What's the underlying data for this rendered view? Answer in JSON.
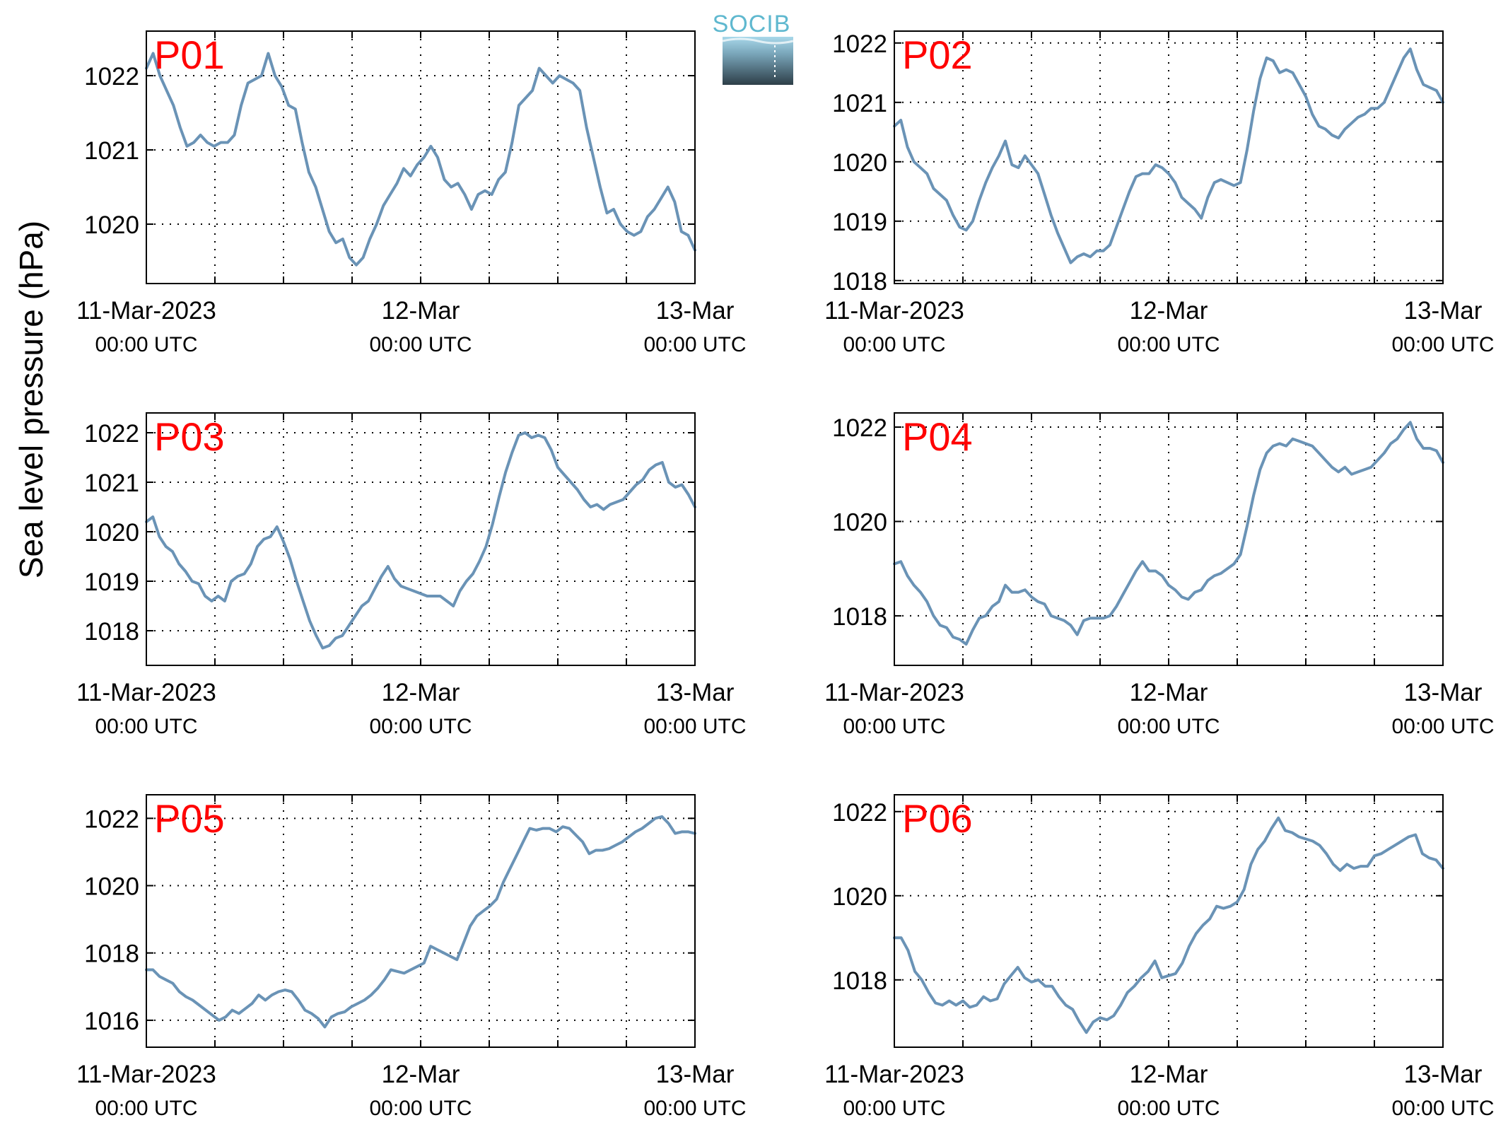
{
  "figure": {
    "ylabel": "Sea level pressure (hPa)",
    "logo_text": "SOCIB",
    "colors": {
      "line": "#6a93b6",
      "panel_label": "#ff0000",
      "axis": "#000000",
      "grid": "#000000"
    }
  },
  "chart_data": [
    {
      "type": "line",
      "panel_label": "P01",
      "x_range": [
        "2023-03-11T00:00Z",
        "2023-03-13T00:00Z"
      ],
      "ylim": [
        1019.2,
        1022.6
      ],
      "y_ticks": [
        1020,
        1021,
        1022
      ],
      "grid": true,
      "x_tick_labels": [
        {
          "date": "11-Mar-2023",
          "time": "00:00 UTC"
        },
        {
          "date": "12-Mar",
          "time": "00:00 UTC"
        },
        {
          "date": "13-Mar",
          "time": "00:00 UTC"
        }
      ],
      "series": [
        {
          "values": [
            1022.1,
            1022.3,
            1022.0,
            1021.8,
            1021.6,
            1021.3,
            1021.05,
            1021.1,
            1021.2,
            1021.1,
            1021.05,
            1021.1,
            1021.1,
            1021.2,
            1021.6,
            1021.9,
            1021.95,
            1022.0,
            1022.3,
            1022.0,
            1021.85,
            1021.6,
            1021.55,
            1021.1,
            1020.7,
            1020.5,
            1020.2,
            1019.9,
            1019.75,
            1019.8,
            1019.55,
            1019.45,
            1019.55,
            1019.8,
            1020.0,
            1020.25,
            1020.4,
            1020.55,
            1020.75,
            1020.65,
            1020.8,
            1020.9,
            1021.05,
            1020.9,
            1020.6,
            1020.5,
            1020.55,
            1020.4,
            1020.2,
            1020.4,
            1020.45,
            1020.4,
            1020.6,
            1020.7,
            1021.1,
            1021.6,
            1021.7,
            1021.8,
            1022.1,
            1022.0,
            1021.9,
            1022.0,
            1021.95,
            1021.9,
            1021.8,
            1021.3,
            1020.9,
            1020.5,
            1020.15,
            1020.2,
            1020.0,
            1019.9,
            1019.85,
            1019.9,
            1020.1,
            1020.2,
            1020.35,
            1020.5,
            1020.3,
            1019.9,
            1019.85,
            1019.65
          ]
        }
      ]
    },
    {
      "type": "line",
      "panel_label": "P02",
      "x_range": [
        "2023-03-11T00:00Z",
        "2023-03-13T00:00Z"
      ],
      "ylim": [
        1017.95,
        1022.2
      ],
      "y_ticks": [
        1018,
        1019,
        1020,
        1021,
        1022
      ],
      "grid": true,
      "x_tick_labels": [
        {
          "date": "11-Mar-2023",
          "time": "00:00 UTC"
        },
        {
          "date": "12-Mar",
          "time": "00:00 UTC"
        },
        {
          "date": "13-Mar",
          "time": "00:00 UTC"
        }
      ],
      "series": [
        {
          "values": [
            1020.6,
            1020.7,
            1020.25,
            1020.0,
            1019.9,
            1019.8,
            1019.55,
            1019.45,
            1019.35,
            1019.1,
            1018.9,
            1018.85,
            1019.0,
            1019.35,
            1019.65,
            1019.9,
            1020.1,
            1020.35,
            1019.95,
            1019.9,
            1020.1,
            1019.95,
            1019.8,
            1019.45,
            1019.1,
            1018.8,
            1018.55,
            1018.3,
            1018.4,
            1018.45,
            1018.4,
            1018.5,
            1018.5,
            1018.6,
            1018.9,
            1019.2,
            1019.5,
            1019.75,
            1019.8,
            1019.8,
            1019.95,
            1019.9,
            1019.8,
            1019.65,
            1019.4,
            1019.3,
            1019.2,
            1019.05,
            1019.4,
            1019.65,
            1019.7,
            1019.65,
            1019.6,
            1019.65,
            1020.2,
            1020.85,
            1021.4,
            1021.75,
            1021.7,
            1021.5,
            1021.55,
            1021.5,
            1021.3,
            1021.1,
            1020.8,
            1020.6,
            1020.55,
            1020.45,
            1020.4,
            1020.55,
            1020.65,
            1020.75,
            1020.8,
            1020.9,
            1020.9,
            1021.0,
            1021.25,
            1021.5,
            1021.75,
            1021.9,
            1021.55,
            1021.3,
            1021.25,
            1021.2,
            1021.0
          ]
        }
      ]
    },
    {
      "type": "line",
      "panel_label": "P03",
      "x_range": [
        "2023-03-11T00:00Z",
        "2023-03-13T00:00Z"
      ],
      "ylim": [
        1017.3,
        1022.4
      ],
      "y_ticks": [
        1018,
        1019,
        1020,
        1021,
        1022
      ],
      "grid": true,
      "x_tick_labels": [
        {
          "date": "11-Mar-2023",
          "time": "00:00 UTC"
        },
        {
          "date": "12-Mar",
          "time": "00:00 UTC"
        },
        {
          "date": "13-Mar",
          "time": "00:00 UTC"
        }
      ],
      "series": [
        {
          "values": [
            1020.2,
            1020.3,
            1019.9,
            1019.7,
            1019.6,
            1019.35,
            1019.2,
            1019.0,
            1018.95,
            1018.7,
            1018.6,
            1018.7,
            1018.6,
            1019.0,
            1019.1,
            1019.15,
            1019.35,
            1019.7,
            1019.85,
            1019.9,
            1020.1,
            1019.8,
            1019.45,
            1019.0,
            1018.6,
            1018.2,
            1017.9,
            1017.65,
            1017.7,
            1017.85,
            1017.9,
            1018.1,
            1018.3,
            1018.5,
            1018.6,
            1018.85,
            1019.1,
            1019.3,
            1019.05,
            1018.9,
            1018.85,
            1018.8,
            1018.75,
            1018.7,
            1018.7,
            1018.7,
            1018.6,
            1018.5,
            1018.8,
            1019.0,
            1019.15,
            1019.4,
            1019.7,
            1020.15,
            1020.7,
            1021.2,
            1021.6,
            1021.95,
            1022.0,
            1021.9,
            1021.95,
            1021.9,
            1021.65,
            1021.3,
            1021.15,
            1021.0,
            1020.85,
            1020.65,
            1020.5,
            1020.55,
            1020.45,
            1020.55,
            1020.6,
            1020.65,
            1020.8,
            1020.95,
            1021.05,
            1021.25,
            1021.35,
            1021.4,
            1021.0,
            1020.9,
            1020.95,
            1020.75,
            1020.5
          ]
        }
      ]
    },
    {
      "type": "line",
      "panel_label": "P04",
      "x_range": [
        "2023-03-11T00:00Z",
        "2023-03-13T00:00Z"
      ],
      "ylim": [
        1016.95,
        1022.3
      ],
      "y_ticks": [
        1018,
        1020,
        1022
      ],
      "grid": true,
      "x_tick_labels": [
        {
          "date": "11-Mar-2023",
          "time": "00:00 UTC"
        },
        {
          "date": "12-Mar",
          "time": "00:00 UTC"
        },
        {
          "date": "13-Mar",
          "time": "00:00 UTC"
        }
      ],
      "series": [
        {
          "values": [
            1019.1,
            1019.15,
            1018.85,
            1018.65,
            1018.5,
            1018.3,
            1018.0,
            1017.8,
            1017.75,
            1017.55,
            1017.5,
            1017.4,
            1017.7,
            1017.95,
            1018.0,
            1018.2,
            1018.3,
            1018.65,
            1018.5,
            1018.5,
            1018.55,
            1018.4,
            1018.3,
            1018.25,
            1018.0,
            1017.95,
            1017.9,
            1017.8,
            1017.6,
            1017.9,
            1017.95,
            1017.95,
            1017.95,
            1018.0,
            1018.2,
            1018.45,
            1018.7,
            1018.95,
            1019.15,
            1018.95,
            1018.95,
            1018.85,
            1018.65,
            1018.55,
            1018.4,
            1018.35,
            1018.5,
            1018.55,
            1018.75,
            1018.85,
            1018.9,
            1019.0,
            1019.1,
            1019.3,
            1019.9,
            1020.55,
            1021.1,
            1021.45,
            1021.6,
            1021.65,
            1021.6,
            1021.75,
            1021.7,
            1021.65,
            1021.6,
            1021.45,
            1021.3,
            1021.15,
            1021.05,
            1021.15,
            1021.0,
            1021.05,
            1021.1,
            1021.15,
            1021.3,
            1021.45,
            1021.65,
            1021.75,
            1021.95,
            1022.1,
            1021.75,
            1021.55,
            1021.55,
            1021.5,
            1021.25
          ]
        }
      ]
    },
    {
      "type": "line",
      "panel_label": "P05",
      "x_range": [
        "2023-03-11T00:00Z",
        "2023-03-13T00:00Z"
      ],
      "ylim": [
        1015.2,
        1022.7
      ],
      "y_ticks": [
        1016,
        1018,
        1020,
        1022
      ],
      "grid": true,
      "x_tick_labels": [
        {
          "date": "11-Mar-2023",
          "time": "00:00 UTC"
        },
        {
          "date": "12-Mar",
          "time": "00:00 UTC"
        },
        {
          "date": "13-Mar",
          "time": "00:00 UTC"
        }
      ],
      "series": [
        {
          "values": [
            1017.5,
            1017.5,
            1017.3,
            1017.2,
            1017.1,
            1016.85,
            1016.7,
            1016.6,
            1016.45,
            1016.3,
            1016.15,
            1016.0,
            1016.1,
            1016.3,
            1016.2,
            1016.35,
            1016.5,
            1016.75,
            1016.6,
            1016.75,
            1016.85,
            1016.9,
            1016.85,
            1016.6,
            1016.3,
            1016.2,
            1016.05,
            1015.8,
            1016.1,
            1016.2,
            1016.25,
            1016.4,
            1016.5,
            1016.6,
            1016.75,
            1016.95,
            1017.2,
            1017.5,
            1017.45,
            1017.4,
            1017.5,
            1017.6,
            1017.7,
            1018.2,
            1018.1,
            1018.0,
            1017.9,
            1017.8,
            1018.3,
            1018.8,
            1019.1,
            1019.25,
            1019.4,
            1019.6,
            1020.1,
            1020.5,
            1020.9,
            1021.3,
            1021.7,
            1021.65,
            1021.7,
            1021.7,
            1021.6,
            1021.75,
            1021.7,
            1021.5,
            1021.3,
            1020.95,
            1021.05,
            1021.05,
            1021.1,
            1021.2,
            1021.3,
            1021.45,
            1021.6,
            1021.7,
            1021.85,
            1022.0,
            1022.05,
            1021.85,
            1021.55,
            1021.6,
            1021.6,
            1021.55
          ]
        }
      ]
    },
    {
      "type": "line",
      "panel_label": "P06",
      "x_range": [
        "2023-03-11T00:00Z",
        "2023-03-13T00:00Z"
      ],
      "ylim": [
        1016.4,
        1022.4
      ],
      "y_ticks": [
        1018,
        1020,
        1022
      ],
      "grid": true,
      "x_tick_labels": [
        {
          "date": "11-Mar-2023",
          "time": "00:00 UTC"
        },
        {
          "date": "12-Mar",
          "time": "00:00 UTC"
        },
        {
          "date": "13-Mar",
          "time": "00:00 UTC"
        }
      ],
      "series": [
        {
          "values": [
            1019.0,
            1019.0,
            1018.7,
            1018.2,
            1018.0,
            1017.7,
            1017.45,
            1017.4,
            1017.5,
            1017.4,
            1017.5,
            1017.35,
            1017.4,
            1017.6,
            1017.5,
            1017.55,
            1017.9,
            1018.1,
            1018.3,
            1018.05,
            1017.95,
            1018.0,
            1017.85,
            1017.85,
            1017.6,
            1017.4,
            1017.3,
            1017.0,
            1016.75,
            1017.0,
            1017.1,
            1017.05,
            1017.15,
            1017.4,
            1017.7,
            1017.85,
            1018.05,
            1018.2,
            1018.45,
            1018.05,
            1018.1,
            1018.15,
            1018.4,
            1018.8,
            1019.1,
            1019.3,
            1019.45,
            1019.75,
            1019.7,
            1019.75,
            1019.85,
            1020.15,
            1020.75,
            1021.1,
            1021.3,
            1021.6,
            1021.85,
            1021.55,
            1021.5,
            1021.4,
            1021.35,
            1021.3,
            1021.2,
            1021.0,
            1020.75,
            1020.6,
            1020.75,
            1020.65,
            1020.7,
            1020.7,
            1020.95,
            1021.0,
            1021.1,
            1021.2,
            1021.3,
            1021.4,
            1021.45,
            1021.0,
            1020.9,
            1020.85,
            1020.65
          ]
        }
      ]
    }
  ]
}
